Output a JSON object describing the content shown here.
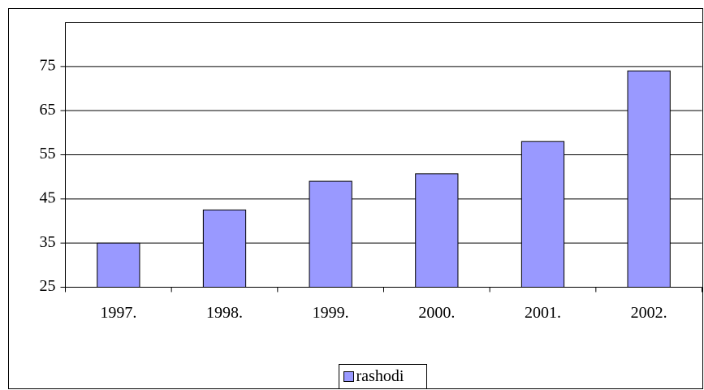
{
  "chart_data": {
    "type": "bar",
    "categories": [
      "1997.",
      "1998.",
      "1999.",
      "2000.",
      "2001.",
      "2002."
    ],
    "series": [
      {
        "name": "rashodi",
        "color": "#9999ff",
        "values": [
          35,
          42.5,
          49,
          50.7,
          58,
          74
        ]
      }
    ],
    "ylim": [
      25,
      85
    ],
    "yticks": [
      25,
      35,
      45,
      55,
      65,
      75
    ],
    "grid": true,
    "legend": "bottom"
  }
}
